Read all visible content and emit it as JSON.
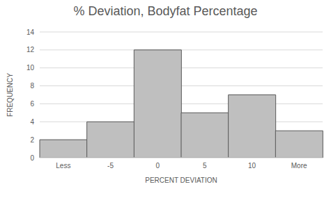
{
  "chart_data": {
    "type": "bar",
    "title": "% Deviation, Bodyfat Percentage",
    "x_label": "PERCENT DEVIATION",
    "y_label": "FREQUENCY",
    "categories": [
      "Less",
      "-5",
      "0",
      "5",
      "10",
      "More"
    ],
    "values": [
      2,
      4,
      12,
      5,
      7,
      3
    ],
    "color": "#bfbfbf",
    "ylim": [
      0,
      14
    ],
    "yticks": [
      0,
      2,
      4,
      6,
      8,
      10,
      12,
      14
    ],
    "grid": true
  }
}
